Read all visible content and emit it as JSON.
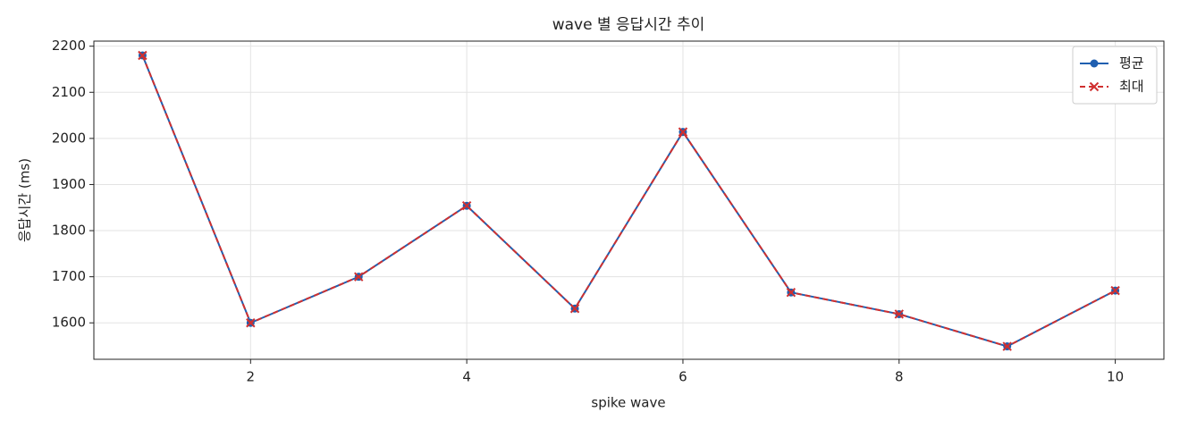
{
  "chart_data": {
    "type": "line",
    "title": "wave 별 응답시간 추이",
    "x_label": "spike wave",
    "y_label": "응답시간 (ms)",
    "x": [
      1,
      2,
      3,
      4,
      5,
      6,
      7,
      8,
      9,
      10
    ],
    "series": [
      {
        "name": "평균",
        "color": "#1f5fb0",
        "marker": "circle",
        "linestyle": "solid",
        "values": [
          2180,
          1600,
          1700,
          1854,
          1631,
          2014,
          1666,
          1619,
          1549,
          1670
        ]
      },
      {
        "name": "최대",
        "color": "#d03030",
        "marker": "x",
        "linestyle": "dashed",
        "values": [
          2180,
          1600,
          1700,
          1854,
          1631,
          2014,
          1666,
          1619,
          1549,
          1670
        ]
      }
    ],
    "xlim": [
      0.55,
      10.45
    ],
    "ylim": [
      1521,
      2211
    ],
    "xticks": [
      2,
      4,
      6,
      8,
      10
    ],
    "yticks": [
      1600,
      1700,
      1800,
      1900,
      2000,
      2100,
      2200
    ],
    "grid": true,
    "legend": "upper right"
  }
}
